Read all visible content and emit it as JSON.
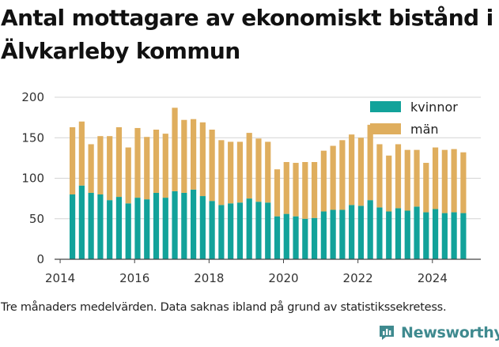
{
  "chart_data": {
    "type": "bar",
    "stacked": true,
    "title": "Antal mottagare av ekonomiskt bistånd i Älvkarleby kommun",
    "xlabel": "",
    "ylabel": "",
    "ylim": [
      0,
      200
    ],
    "yticks": [
      0,
      50,
      100,
      150,
      200
    ],
    "xlim": [
      2013.85,
      2025.3
    ],
    "xticks": [
      "2014",
      "2016",
      "2018",
      "2020",
      "2022",
      "2024"
    ],
    "grid": true,
    "legend_position": "top-right",
    "x": [
      2014.33,
      2014.58,
      2014.83,
      2015.08,
      2015.33,
      2015.58,
      2015.83,
      2016.08,
      2016.33,
      2016.58,
      2016.83,
      2017.08,
      2017.33,
      2017.58,
      2017.83,
      2018.08,
      2018.33,
      2018.58,
      2018.83,
      2019.08,
      2019.33,
      2019.58,
      2019.83,
      2020.08,
      2020.33,
      2020.58,
      2020.83,
      2021.08,
      2021.33,
      2021.58,
      2021.83,
      2022.08,
      2022.33,
      2022.58,
      2022.83,
      2023.08,
      2023.33,
      2023.58,
      2023.83,
      2024.08,
      2024.33,
      2024.58,
      2024.83
    ],
    "series": [
      {
        "name": "kvinnor",
        "color": "#12a29a",
        "values": [
          80,
          91,
          82,
          80,
          73,
          77,
          69,
          76,
          74,
          82,
          76,
          84,
          82,
          86,
          78,
          72,
          67,
          69,
          70,
          75,
          71,
          70,
          53,
          56,
          53,
          50,
          51,
          59,
          61,
          61,
          67,
          66,
          73,
          64,
          59,
          63,
          60,
          65,
          58,
          62,
          57,
          58,
          57
        ]
      },
      {
        "name": "män",
        "color": "#dfae5e",
        "values": [
          83,
          79,
          60,
          72,
          79,
          86,
          69,
          86,
          77,
          78,
          79,
          103,
          90,
          87,
          91,
          88,
          80,
          76,
          75,
          81,
          78,
          75,
          58,
          64,
          66,
          70,
          69,
          75,
          79,
          86,
          87,
          84,
          93,
          78,
          69,
          79,
          75,
          70,
          61,
          76,
          78,
          78,
          75
        ]
      }
    ]
  },
  "caption": "Tre månaders medelvärden. Data saknas ibland på grund av statistikssekretess.",
  "brand": {
    "name": "Newsworthy",
    "color": "#3f8a8f"
  }
}
